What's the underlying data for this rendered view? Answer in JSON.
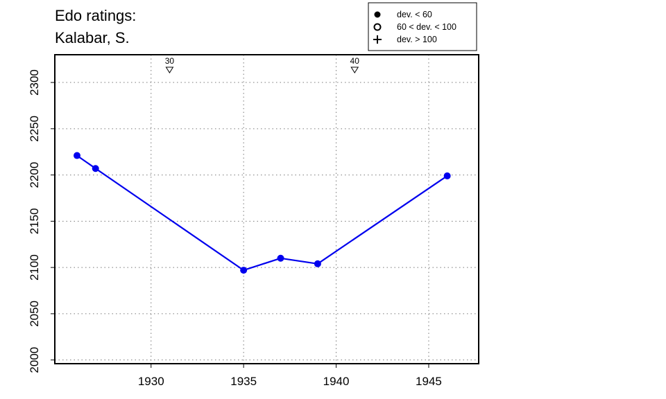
{
  "chart_data": {
    "type": "line",
    "title": "Edo ratings:",
    "subtitle": "Kalabar, S.",
    "xlabel": "",
    "ylabel": "",
    "xlim": [
      1924.8,
      1947.7
    ],
    "ylim": [
      1996,
      2330
    ],
    "x_ticks": [
      "1930",
      "1935",
      "1940",
      "1945"
    ],
    "y_ticks": [
      "2000",
      "2050",
      "2100",
      "2150",
      "2200",
      "2250",
      "2300"
    ],
    "grid": true,
    "grid_style": "dotted",
    "series": [
      {
        "color": "#0000ee",
        "marker": "filled-circle",
        "points": [
          {
            "x": 1926,
            "y": 2221
          },
          {
            "x": 1927,
            "y": 2207
          },
          {
            "x": 1935,
            "y": 2097
          },
          {
            "x": 1937,
            "y": 2110
          },
          {
            "x": 1939,
            "y": 2104
          },
          {
            "x": 1946,
            "y": 2199
          }
        ]
      }
    ],
    "annotations": [
      {
        "x": 1931,
        "label": "30",
        "symbol": "down-triangle"
      },
      {
        "x": 1941,
        "label": "40",
        "symbol": "down-triangle"
      }
    ],
    "legend": {
      "placement": "top-right",
      "entries": [
        {
          "symbol": "filled-circle",
          "label": "dev. < 60"
        },
        {
          "symbol": "open-circle",
          "label": "60 < dev. < 100"
        },
        {
          "symbol": "plus",
          "label": "dev. > 100"
        }
      ]
    }
  }
}
